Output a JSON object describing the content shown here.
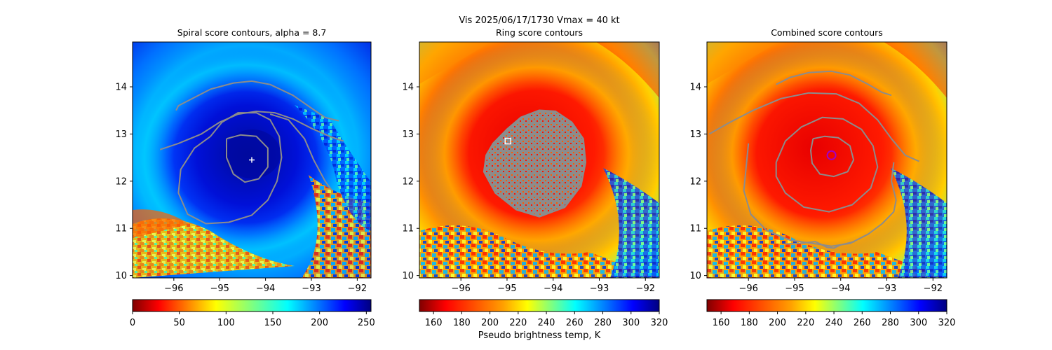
{
  "figure": {
    "suptitle_line1": "Vis  2025/06/17/1730    Vmax = 40 kt",
    "colorbar_label": "Pseudo brightness temp, K"
  },
  "colors": {
    "contour": "#8c8c8c",
    "spiral_marker": "#ffffff",
    "ring_marker": "#ffffff",
    "combined_marker": "#a000c8"
  },
  "chart_data": [
    {
      "type": "heatmap",
      "title": "Spiral score contours, alpha =  8.7",
      "xlim": [
        -96.9,
        -91.7
      ],
      "ylim": [
        9.95,
        14.95
      ],
      "xticks": [
        -96,
        -95,
        -94,
        -93,
        -92
      ],
      "yticks": [
        10,
        11,
        12,
        13,
        14
      ],
      "colormap": "jet_r",
      "colorbar": {
        "range": [
          0,
          255
        ],
        "ticks": [
          0,
          50,
          100,
          150,
          200,
          250
        ]
      },
      "contours": [
        {
          "name": "outer",
          "points": [
            [
              -96.3,
              12.67
            ],
            [
              -95.9,
              12.8
            ],
            [
              -95.4,
              13.0
            ],
            [
              -95.0,
              13.25
            ],
            [
              -94.6,
              13.42
            ],
            [
              -94.2,
              13.48
            ],
            [
              -93.8,
              13.45
            ],
            [
              -93.4,
              13.32
            ],
            [
              -93.0,
              13.12
            ],
            [
              -92.6,
              12.95
            ],
            [
              -92.4,
              12.88
            ],
            [
              -92.3,
              12.85
            ]
          ]
        },
        {
          "name": "upper-arc",
          "points": [
            [
              -95.95,
              13.5
            ],
            [
              -95.9,
              13.6
            ],
            [
              -95.6,
              13.75
            ],
            [
              -95.2,
              13.95
            ],
            [
              -94.7,
              14.08
            ],
            [
              -94.3,
              14.12
            ],
            [
              -93.9,
              14.05
            ],
            [
              -93.4,
              13.82
            ],
            [
              -93.0,
              13.55
            ],
            [
              -92.7,
              13.35
            ],
            [
              -92.4,
              13.28
            ]
          ]
        },
        {
          "name": "middle",
          "points": [
            [
              -95.2,
              12.95
            ],
            [
              -94.95,
              13.25
            ],
            [
              -94.6,
              13.45
            ],
            [
              -94.2,
              13.45
            ],
            [
              -93.9,
              13.3
            ],
            [
              -93.7,
              12.95
            ],
            [
              -93.65,
              12.5
            ],
            [
              -93.75,
              12.0
            ],
            [
              -93.95,
              11.6
            ],
            [
              -94.3,
              11.28
            ],
            [
              -94.8,
              11.13
            ],
            [
              -95.3,
              11.1
            ],
            [
              -95.7,
              11.3
            ],
            [
              -95.9,
              11.75
            ],
            [
              -95.85,
              12.25
            ],
            [
              -95.55,
              12.7
            ],
            [
              -95.2,
              12.95
            ]
          ]
        },
        {
          "name": "outer-arm",
          "points": [
            [
              -93.9,
              13.42
            ],
            [
              -93.5,
              13.3
            ],
            [
              -93.15,
              12.9
            ],
            [
              -92.95,
              12.45
            ],
            [
              -92.7,
              12.0
            ],
            [
              -92.55,
              11.8
            ]
          ]
        },
        {
          "name": "inner",
          "points": [
            [
              -94.85,
              12.9
            ],
            [
              -94.55,
              12.98
            ],
            [
              -94.2,
              12.95
            ],
            [
              -93.95,
              12.7
            ],
            [
              -93.95,
              12.3
            ],
            [
              -94.15,
              12.05
            ],
            [
              -94.45,
              11.98
            ],
            [
              -94.7,
              12.15
            ],
            [
              -94.85,
              12.5
            ],
            [
              -94.85,
              12.9
            ]
          ]
        }
      ],
      "center_marker": {
        "shape": "plus",
        "x": -94.3,
        "y": 12.45
      }
    },
    {
      "type": "heatmap",
      "title": "Ring score contours",
      "xlim": [
        -96.9,
        -91.7
      ],
      "ylim": [
        9.95,
        14.95
      ],
      "xticks": [
        -96,
        -95,
        -94,
        -93,
        -92
      ],
      "yticks": [
        10,
        11,
        12,
        13,
        14
      ],
      "colormap": "jet_r",
      "colorbar": {
        "range": [
          150,
          320
        ],
        "ticks": [
          160,
          180,
          200,
          220,
          240,
          260,
          280,
          300,
          320
        ]
      },
      "contours": [
        {
          "name": "ring-score-cluster",
          "points": [
            [
              -95.3,
              12.8
            ],
            [
              -95.0,
              13.1
            ],
            [
              -94.7,
              13.35
            ],
            [
              -94.3,
              13.5
            ],
            [
              -93.95,
              13.48
            ],
            [
              -93.6,
              13.25
            ],
            [
              -93.35,
              12.9
            ],
            [
              -93.3,
              12.4
            ],
            [
              -93.4,
              11.9
            ],
            [
              -93.75,
              11.45
            ],
            [
              -94.3,
              11.25
            ],
            [
              -94.8,
              11.4
            ],
            [
              -95.25,
              11.75
            ],
            [
              -95.5,
              12.2
            ],
            [
              -95.45,
              12.55
            ],
            [
              -95.3,
              12.8
            ]
          ]
        }
      ],
      "center_marker": {
        "shape": "square",
        "x": -94.98,
        "y": 12.85
      }
    },
    {
      "type": "heatmap",
      "title": "Combined score contours",
      "xlim": [
        -96.9,
        -91.7
      ],
      "ylim": [
        9.95,
        14.95
      ],
      "xticks": [
        -96,
        -95,
        -94,
        -93,
        -92
      ],
      "yticks": [
        10,
        11,
        12,
        13,
        14
      ],
      "colormap": "jet_r",
      "colorbar": {
        "range": [
          150,
          320
        ],
        "ticks": [
          160,
          180,
          200,
          220,
          240,
          260,
          280,
          300,
          320
        ]
      },
      "contours": [
        {
          "name": "top-arc",
          "points": [
            [
              -95.4,
              14.05
            ],
            [
              -95.1,
              14.2
            ],
            [
              -94.7,
              14.3
            ],
            [
              -94.2,
              14.33
            ],
            [
              -93.8,
              14.25
            ],
            [
              -93.4,
              14.05
            ],
            [
              -93.1,
              13.88
            ],
            [
              -92.9,
              13.82
            ]
          ]
        },
        {
          "name": "outer",
          "points": [
            [
              -96.85,
              13.0
            ],
            [
              -96.4,
              13.25
            ],
            [
              -95.9,
              13.5
            ],
            [
              -95.3,
              13.75
            ],
            [
              -94.7,
              13.87
            ],
            [
              -94.1,
              13.85
            ],
            [
              -93.6,
              13.65
            ],
            [
              -93.2,
              13.3
            ],
            [
              -92.9,
              12.9
            ],
            [
              -92.6,
              12.55
            ],
            [
              -92.3,
              12.42
            ]
          ]
        },
        {
          "name": "lower-arc",
          "points": [
            [
              -96.0,
              12.8
            ],
            [
              -96.05,
              12.3
            ],
            [
              -96.1,
              11.8
            ],
            [
              -95.95,
              11.3
            ],
            [
              -95.6,
              10.95
            ],
            [
              -95.1,
              10.75
            ],
            [
              -94.6,
              10.68
            ],
            [
              -94.2,
              10.62
            ],
            [
              -93.8,
              10.68
            ],
            [
              -93.4,
              10.88
            ],
            [
              -93.1,
              11.1
            ],
            [
              -92.85,
              11.35
            ],
            [
              -92.8,
              11.6
            ],
            [
              -92.9,
              12.0
            ],
            [
              -92.85,
              12.4
            ]
          ]
        },
        {
          "name": "bottom-line",
          "points": [
            [
              -95.2,
              10.67
            ],
            [
              -94.9,
              10.68
            ],
            [
              -94.55,
              10.72
            ],
            [
              -94.3,
              10.6
            ],
            [
              -94.15,
              10.58
            ],
            [
              -94.0,
              10.65
            ],
            [
              -93.7,
              10.72
            ]
          ]
        },
        {
          "name": "middle",
          "points": [
            [
              -95.4,
              12.4
            ],
            [
              -95.2,
              12.85
            ],
            [
              -94.85,
              13.15
            ],
            [
              -94.4,
              13.35
            ],
            [
              -93.95,
              13.32
            ],
            [
              -93.55,
              13.1
            ],
            [
              -93.3,
              12.75
            ],
            [
              -93.2,
              12.3
            ],
            [
              -93.35,
              11.85
            ],
            [
              -93.75,
              11.5
            ],
            [
              -94.25,
              11.35
            ],
            [
              -94.8,
              11.45
            ],
            [
              -95.2,
              11.75
            ],
            [
              -95.4,
              12.1
            ],
            [
              -95.4,
              12.4
            ]
          ]
        },
        {
          "name": "inner",
          "points": [
            [
              -94.6,
              12.9
            ],
            [
              -94.35,
              12.95
            ],
            [
              -94.05,
              12.92
            ],
            [
              -93.8,
              12.75
            ],
            [
              -93.72,
              12.45
            ],
            [
              -93.85,
              12.2
            ],
            [
              -94.15,
              12.1
            ],
            [
              -94.45,
              12.15
            ],
            [
              -94.62,
              12.38
            ],
            [
              -94.65,
              12.65
            ],
            [
              -94.6,
              12.9
            ]
          ]
        }
      ],
      "center_marker": {
        "shape": "circle",
        "x": -94.2,
        "y": 12.55
      }
    }
  ]
}
